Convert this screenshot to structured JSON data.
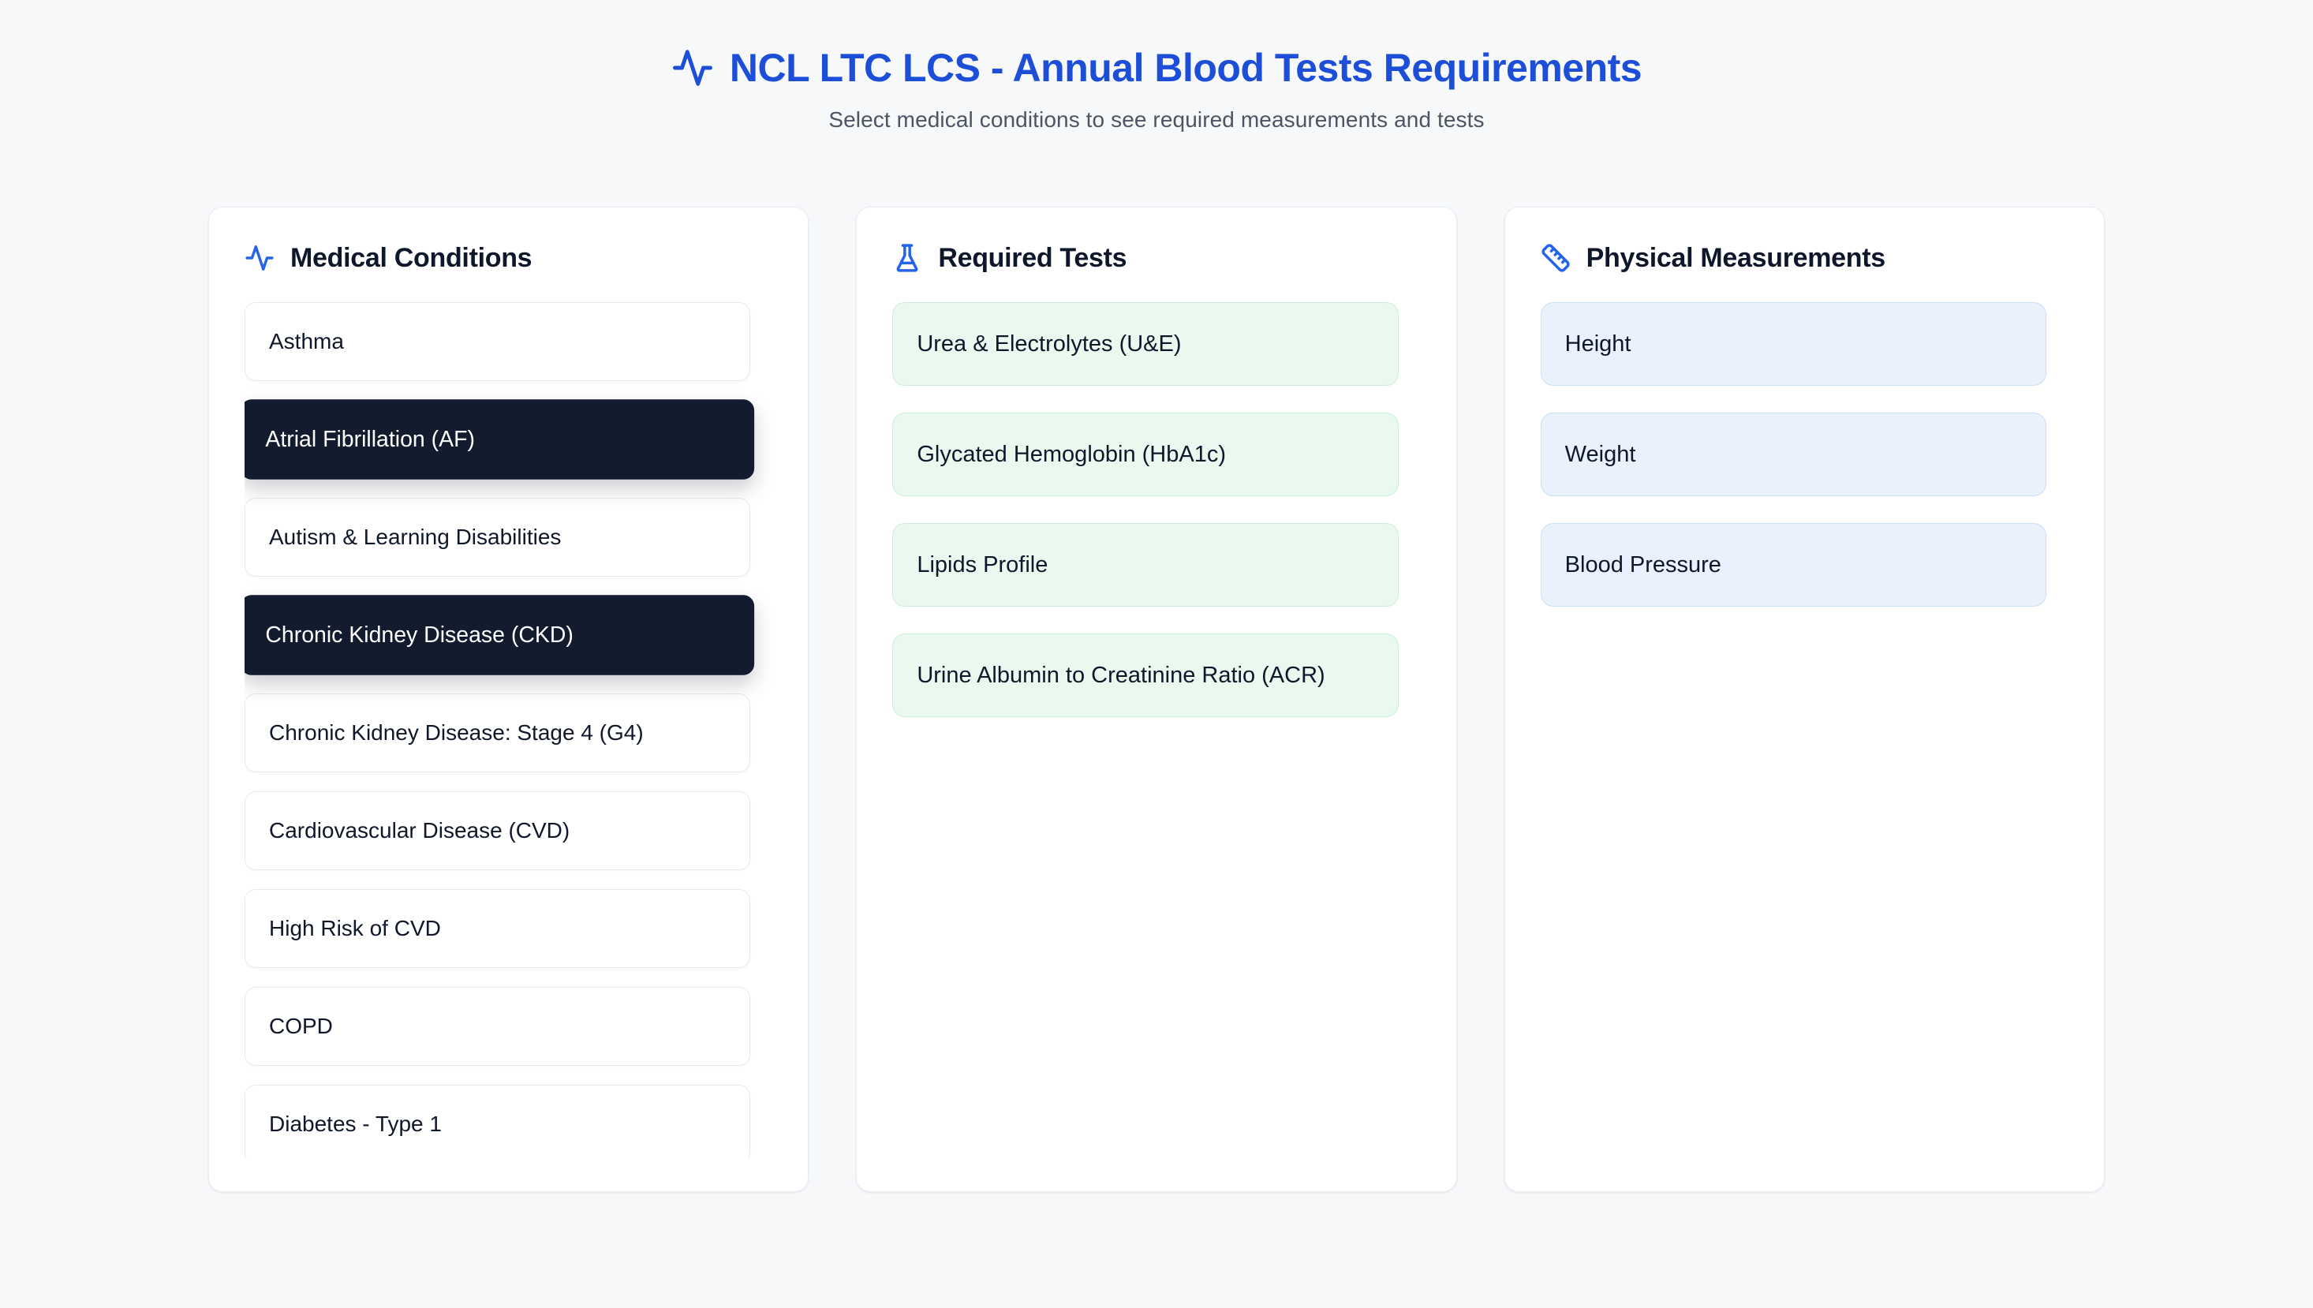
{
  "header": {
    "title": "NCL LTC LCS - Annual Blood Tests Requirements",
    "subtitle": "Select medical conditions to see required measurements and tests"
  },
  "panels": {
    "conditions": {
      "title": "Medical Conditions",
      "icon": "activity-icon",
      "items": [
        {
          "label": "Asthma",
          "selected": false
        },
        {
          "label": "Atrial Fibrillation (AF)",
          "selected": true
        },
        {
          "label": "Autism & Learning Disabilities",
          "selected": false
        },
        {
          "label": "Chronic Kidney Disease (CKD)",
          "selected": true
        },
        {
          "label": "Chronic Kidney Disease: Stage 4 (G4)",
          "selected": false
        },
        {
          "label": "Cardiovascular Disease (CVD)",
          "selected": false
        },
        {
          "label": "High Risk of CVD",
          "selected": false
        },
        {
          "label": "COPD",
          "selected": false
        },
        {
          "label": "Diabetes - Type 1",
          "selected": false
        }
      ]
    },
    "tests": {
      "title": "Required Tests",
      "icon": "flask-icon",
      "items": [
        "Urea & Electrolytes (U&E)",
        "Glycated Hemoglobin (HbA1c)",
        "Lipids Profile",
        "Urine Albumin to Creatinine Ratio (ACR)"
      ]
    },
    "measurements": {
      "title": "Physical Measurements",
      "icon": "ruler-icon",
      "items": [
        "Height",
        "Weight",
        "Blood Pressure"
      ]
    }
  },
  "colors": {
    "title_blue": "#1d4ed8",
    "icon_blue": "#2563eb",
    "selected_condition_bg": "#131c2f",
    "test_bg": "#e9f9f0",
    "test_border": "#c9edd9",
    "measurement_bg": "#e9f1fd",
    "measurement_border": "#cadff9",
    "page_bg": "#f7f8fa"
  }
}
